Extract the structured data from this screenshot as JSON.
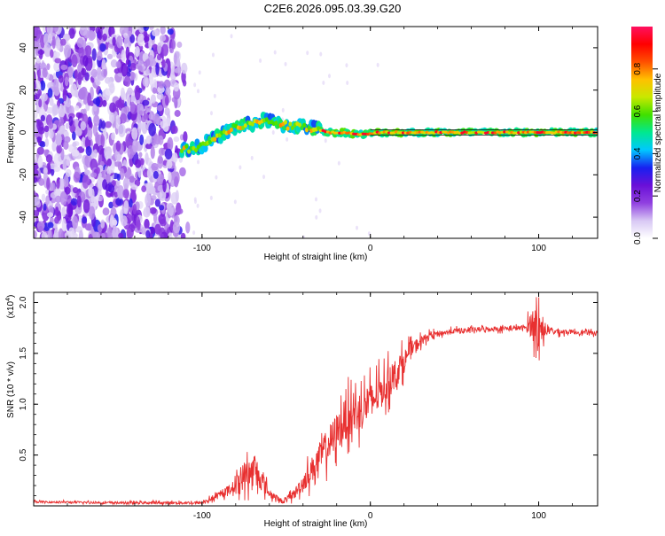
{
  "title": "C2E6.2026.095.03.39.G20",
  "chart_data": [
    {
      "type": "heatmap",
      "xlabel": "Height of straight line (km)",
      "ylabel": "Frequency (Hz)",
      "xlim": [
        -200,
        135
      ],
      "ylim": [
        -50,
        50
      ],
      "x_ticks": [
        -100,
        0,
        100
      ],
      "x_tick_labels": [
        "-100",
        "0",
        "100"
      ],
      "y_ticks": [
        -40,
        -20,
        0,
        20,
        40
      ],
      "y_tick_labels": [
        "-40",
        "-20",
        "0",
        "20",
        "40"
      ],
      "colorbar": {
        "label": "Normalized spectral amplitude",
        "range": [
          0,
          1
        ],
        "ticks": [
          0.0,
          0.2,
          0.4,
          0.6,
          0.8
        ],
        "tick_labels": [
          "0.0",
          "0.2",
          "0.4",
          "0.6",
          "0.8"
        ],
        "colors": [
          "#ffffff",
          "#d8c8f4",
          "#9040e0",
          "#6a10d8",
          "#1820f0",
          "#00c8ff",
          "#00e890",
          "#40e000",
          "#c8e800",
          "#ffc000",
          "#ff5000",
          "#ff0000",
          "#ff1060"
        ]
      },
      "noise_region_x": [
        -200,
        -108
      ],
      "signal_track": [
        {
          "x": -112,
          "f": -8
        },
        {
          "x": -105,
          "f": -8
        },
        {
          "x": -100,
          "f": -6
        },
        {
          "x": -93,
          "f": -3
        },
        {
          "x": -86,
          "f": 0
        },
        {
          "x": -78,
          "f": 3
        },
        {
          "x": -70,
          "f": 4
        },
        {
          "x": -62,
          "f": 6
        },
        {
          "x": -55,
          "f": 4
        },
        {
          "x": -48,
          "f": 3
        },
        {
          "x": -40,
          "f": 3
        },
        {
          "x": -33,
          "f": 2
        },
        {
          "x": -25,
          "f": 0
        },
        {
          "x": -15,
          "f": 0
        },
        {
          "x": -5,
          "f": -1
        },
        {
          "x": 5,
          "f": 0
        },
        {
          "x": 20,
          "f": 0
        },
        {
          "x": 40,
          "f": 0
        },
        {
          "x": 60,
          "f": 0
        },
        {
          "x": 80,
          "f": 0
        },
        {
          "x": 100,
          "f": 0
        },
        {
          "x": 120,
          "f": 0
        },
        {
          "x": 135,
          "f": 0
        }
      ]
    },
    {
      "type": "line",
      "xlabel": "Height of straight line (km)",
      "ylabel": "SNR (10 * v/v)",
      "y_scale_label": "(x10",
      "y_scale_exponent": "4",
      "xlim": [
        -200,
        135
      ],
      "ylim": [
        0,
        2.1
      ],
      "x_ticks": [
        -100,
        0,
        100
      ],
      "x_tick_labels": [
        "-100",
        "0",
        "100"
      ],
      "y_ticks": [
        0.5,
        1.0,
        1.5,
        2.0
      ],
      "y_tick_labels": [
        "0.5",
        "1.0",
        "1.5",
        "2.0"
      ],
      "series": [
        {
          "name": "SNR",
          "color": "#e83030",
          "envelope": [
            {
              "x": -200,
              "y": 0.04,
              "noise": 0.02
            },
            {
              "x": -150,
              "y": 0.03,
              "noise": 0.02
            },
            {
              "x": -100,
              "y": 0.03,
              "noise": 0.03
            },
            {
              "x": -90,
              "y": 0.1,
              "noise": 0.06
            },
            {
              "x": -82,
              "y": 0.18,
              "noise": 0.1
            },
            {
              "x": -75,
              "y": 0.3,
              "noise": 0.28
            },
            {
              "x": -68,
              "y": 0.35,
              "noise": 0.3
            },
            {
              "x": -60,
              "y": 0.12,
              "noise": 0.08
            },
            {
              "x": -52,
              "y": 0.04,
              "noise": 0.04
            },
            {
              "x": -45,
              "y": 0.12,
              "noise": 0.1
            },
            {
              "x": -35,
              "y": 0.35,
              "noise": 0.25
            },
            {
              "x": -25,
              "y": 0.6,
              "noise": 0.35
            },
            {
              "x": -15,
              "y": 0.85,
              "noise": 0.4
            },
            {
              "x": -5,
              "y": 0.95,
              "noise": 0.4
            },
            {
              "x": 5,
              "y": 1.1,
              "noise": 0.35
            },
            {
              "x": 15,
              "y": 1.3,
              "noise": 0.3
            },
            {
              "x": 25,
              "y": 1.55,
              "noise": 0.15
            },
            {
              "x": 35,
              "y": 1.68,
              "noise": 0.06
            },
            {
              "x": 50,
              "y": 1.72,
              "noise": 0.05
            },
            {
              "x": 70,
              "y": 1.74,
              "noise": 0.05
            },
            {
              "x": 92,
              "y": 1.75,
              "noise": 0.05
            },
            {
              "x": 96,
              "y": 1.8,
              "noise": 0.3
            },
            {
              "x": 100,
              "y": 1.75,
              "noise": 0.45
            },
            {
              "x": 104,
              "y": 1.72,
              "noise": 0.08
            },
            {
              "x": 120,
              "y": 1.71,
              "noise": 0.04
            },
            {
              "x": 135,
              "y": 1.7,
              "noise": 0.04
            }
          ]
        }
      ]
    }
  ]
}
